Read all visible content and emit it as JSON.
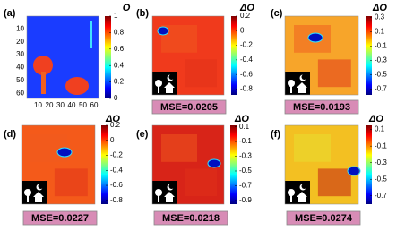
{
  "chart_data": [
    {
      "type": "heatmap",
      "label": "(a)",
      "colorbar_label": "O",
      "clim": [
        0,
        1
      ],
      "colorbar_ticks": [
        0,
        0.2,
        0.4,
        0.6,
        0.8,
        1
      ],
      "xlim": [
        0,
        64
      ],
      "xticks": [
        10,
        20,
        30,
        40,
        50,
        60
      ],
      "ylim": [
        0,
        64
      ],
      "yticks": [
        10,
        20,
        30,
        40,
        50,
        60
      ]
    },
    {
      "type": "heatmap",
      "label": "(b)",
      "colorbar_label": "ΔO",
      "clim": [
        -0.88,
        0.2
      ],
      "colorbar_ticks": [
        0.2,
        0,
        -0.2,
        -0.4,
        -0.6,
        -0.8
      ],
      "annotation": "MSE=0.0205"
    },
    {
      "type": "heatmap",
      "label": "(c)",
      "colorbar_label": "ΔO",
      "clim": [
        -0.78,
        0.32
      ],
      "colorbar_ticks": [
        0.3,
        0.1,
        -0.1,
        -0.3,
        -0.5,
        -0.7
      ],
      "annotation": "MSE=0.0193"
    },
    {
      "type": "heatmap",
      "label": "(d)",
      "colorbar_label": "ΔO",
      "clim": [
        -0.85,
        0.2
      ],
      "colorbar_ticks": [
        0.2,
        0,
        -0.2,
        -0.4,
        -0.6,
        -0.8
      ],
      "annotation": "MSE=0.0227"
    },
    {
      "type": "heatmap",
      "label": "(e)",
      "colorbar_label": "ΔO",
      "clim": [
        -0.95,
        0.12
      ],
      "colorbar_ticks": [
        0.1,
        -0.1,
        -0.3,
        -0.5,
        -0.7,
        -0.9
      ],
      "annotation": "MSE=0.0218"
    },
    {
      "type": "heatmap",
      "label": "(f)",
      "colorbar_label": "ΔO",
      "clim": [
        -0.8,
        0.15
      ],
      "colorbar_ticks": [
        0.1,
        -0.1,
        -0.3,
        -0.5,
        -0.7
      ],
      "annotation": "MSE=0.0274"
    }
  ]
}
